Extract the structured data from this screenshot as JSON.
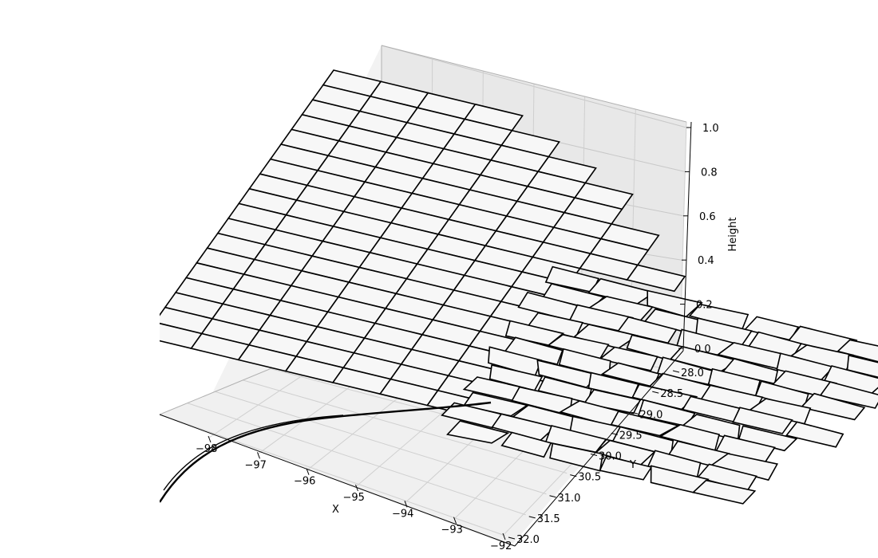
{
  "chart_data": {
    "type": "surface3d",
    "title": "",
    "xlabel": "X",
    "ylabel": "Y",
    "zlabel": "Height",
    "xlim": [
      -98.2,
      -92
    ],
    "ylim": [
      28,
      32
    ],
    "zlim": [
      0,
      1
    ],
    "x_ticks": [
      "−98",
      "−97",
      "−96",
      "−95",
      "−94",
      "−93",
      "−92"
    ],
    "y_ticks": [
      "28.0",
      "28.5",
      "29.0",
      "29.5",
      "30.0",
      "30.5",
      "31.0",
      "31.5",
      "32.0"
    ],
    "z_ticks": [
      "0.0",
      "0.2",
      "0.4",
      "0.6",
      "0.8",
      "1.0"
    ],
    "grid": true,
    "surface_height": 0.42,
    "surface_color": "#f7f7f7",
    "edge_color": "#000000",
    "pane_colors": [
      "#f2f2f2",
      "#ebebeb",
      "#e6e6e6"
    ],
    "description_features": "county boundary polygons of southeast Texas and Gulf coast drawn as a flat surface"
  }
}
